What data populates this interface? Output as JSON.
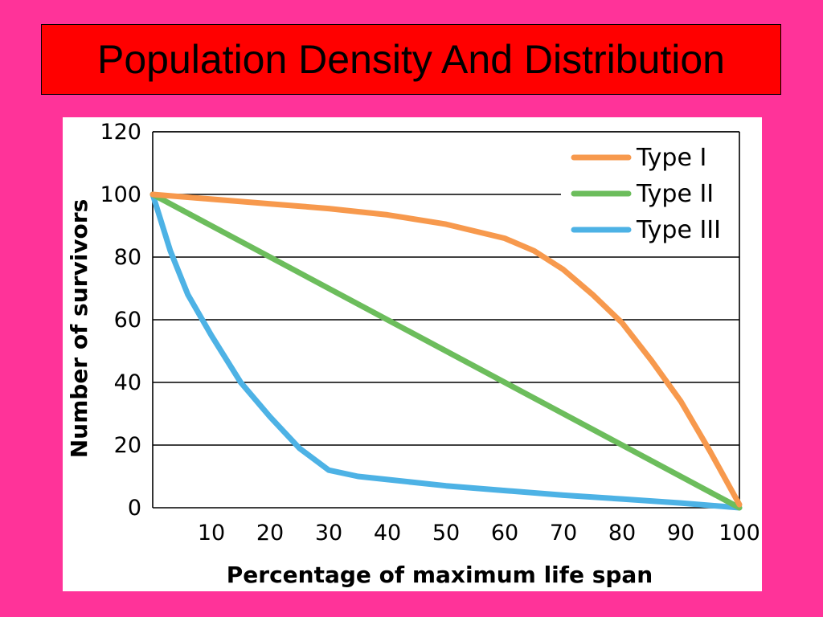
{
  "slide": {
    "title": "Population Density And Distribution"
  },
  "colors": {
    "background": "#ff3399",
    "title_box": "#ff0000",
    "type_i": "#f7994d",
    "type_ii": "#6cbd5c",
    "type_iii": "#4db2e5"
  },
  "chart_data": {
    "type": "line",
    "title": "",
    "xlabel": "Percentage of maximum life span",
    "ylabel": "Number of survivors",
    "xlim": [
      0,
      100
    ],
    "ylim": [
      0,
      120
    ],
    "x_ticks": [
      10,
      20,
      30,
      40,
      50,
      60,
      70,
      80,
      90,
      100
    ],
    "y_ticks": [
      0,
      20,
      40,
      60,
      80,
      100,
      120
    ],
    "grid": "horizontal",
    "legend_position": "top-right",
    "series": [
      {
        "name": "Type I",
        "color": "#f7994d",
        "x": [
          0,
          10,
          20,
          30,
          40,
          50,
          60,
          65,
          70,
          75,
          80,
          85,
          90,
          95,
          100
        ],
        "y": [
          100,
          98.5,
          97,
          95.5,
          93.5,
          90.5,
          86,
          82,
          76,
          68,
          59,
          47,
          34,
          18,
          1
        ]
      },
      {
        "name": "Type II",
        "color": "#6cbd5c",
        "x": [
          0,
          100
        ],
        "y": [
          100,
          0
        ]
      },
      {
        "name": "Type III",
        "color": "#4db2e5",
        "x": [
          0,
          3,
          6,
          10,
          15,
          20,
          25,
          30,
          35,
          40,
          50,
          60,
          70,
          80,
          90,
          100
        ],
        "y": [
          100,
          82,
          68,
          55,
          40,
          29,
          19,
          12,
          10,
          9,
          7,
          5.5,
          4,
          2.8,
          1.5,
          0
        ]
      }
    ]
  }
}
